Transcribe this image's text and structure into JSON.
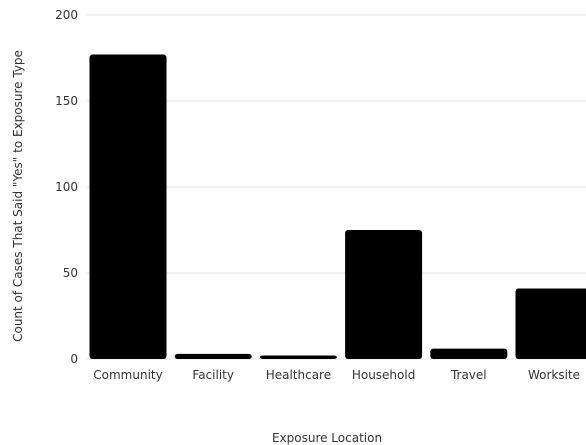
{
  "chart_data": {
    "type": "bar",
    "title": "",
    "xlabel": "Exposure Location",
    "ylabel": "Count of Cases That Said \"Yes\" to Exposure Type",
    "categories": [
      "Community",
      "Facility",
      "Healthcare",
      "Household",
      "Travel",
      "Worksite"
    ],
    "values": [
      177,
      3,
      2,
      75,
      6,
      41
    ],
    "ylim": [
      0,
      200
    ],
    "yticks": [
      0,
      50,
      100,
      150,
      200
    ],
    "grid": true,
    "legend": "none",
    "colors": {
      "bar": "#000000",
      "grid": "#e6e6e6",
      "text": "#333333"
    }
  }
}
